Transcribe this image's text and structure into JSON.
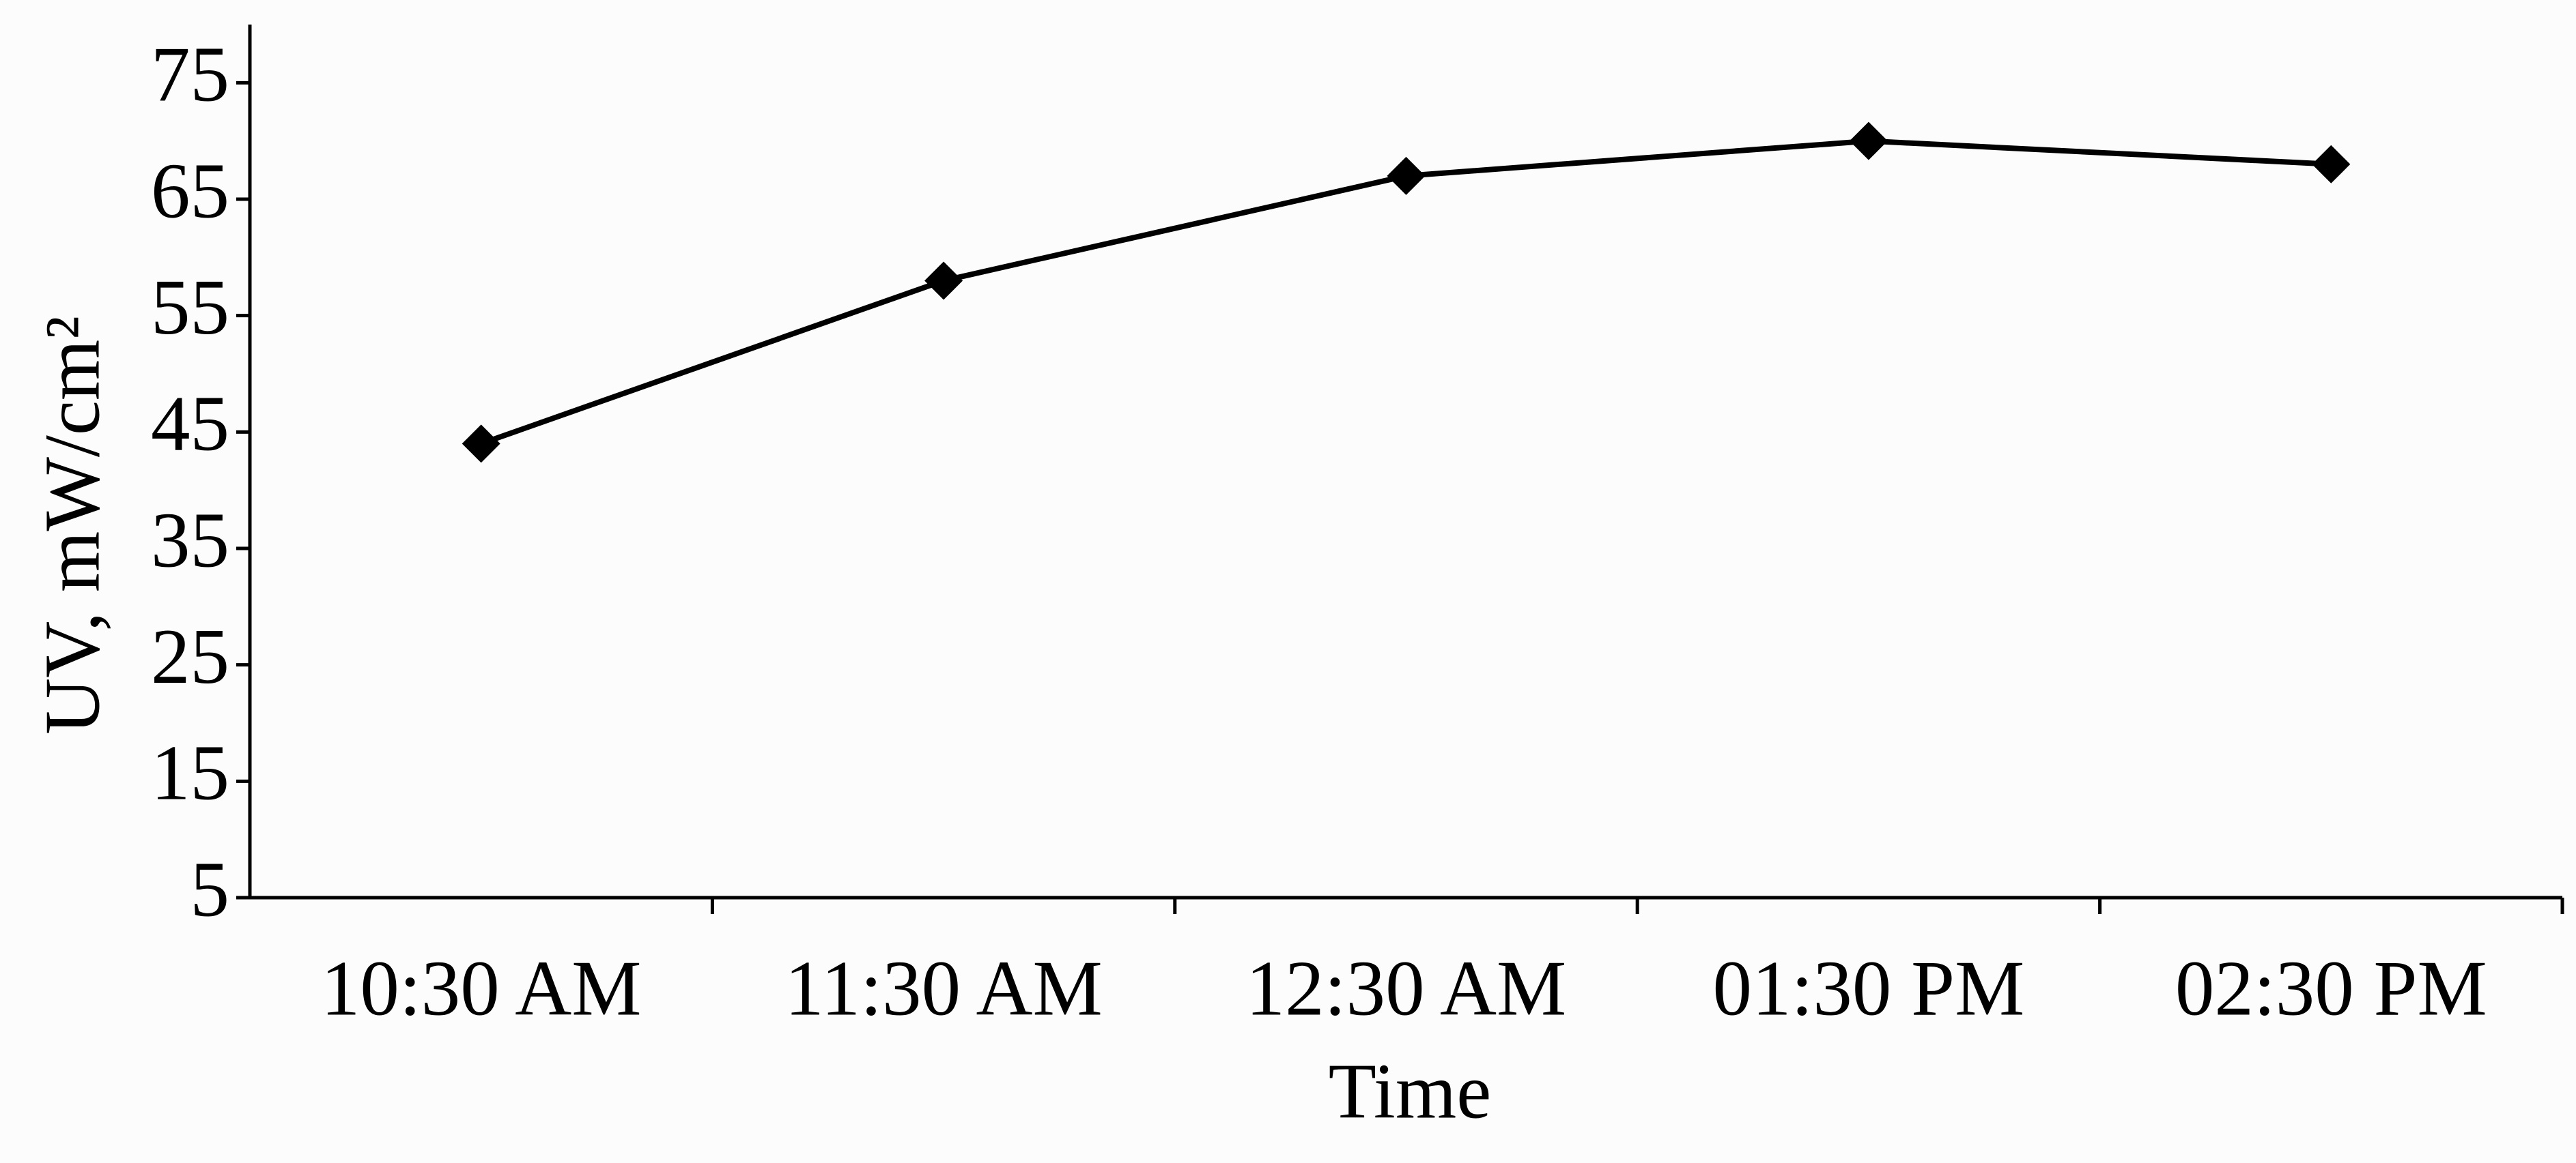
{
  "chart_data": {
    "type": "line",
    "x_label": "Time",
    "y_label": "UV, mW/cm²",
    "categories": [
      "10:30 AM",
      "11:30 AM",
      "12:30 AM",
      "01:30 PM",
      "02:30 PM"
    ],
    "values": [
      44,
      58,
      67,
      70,
      68
    ],
    "color": "#000000",
    "ylim": [
      5,
      80
    ],
    "yticks": [
      5,
      15,
      25,
      35,
      45,
      55,
      65,
      75
    ],
    "grid": false
  }
}
